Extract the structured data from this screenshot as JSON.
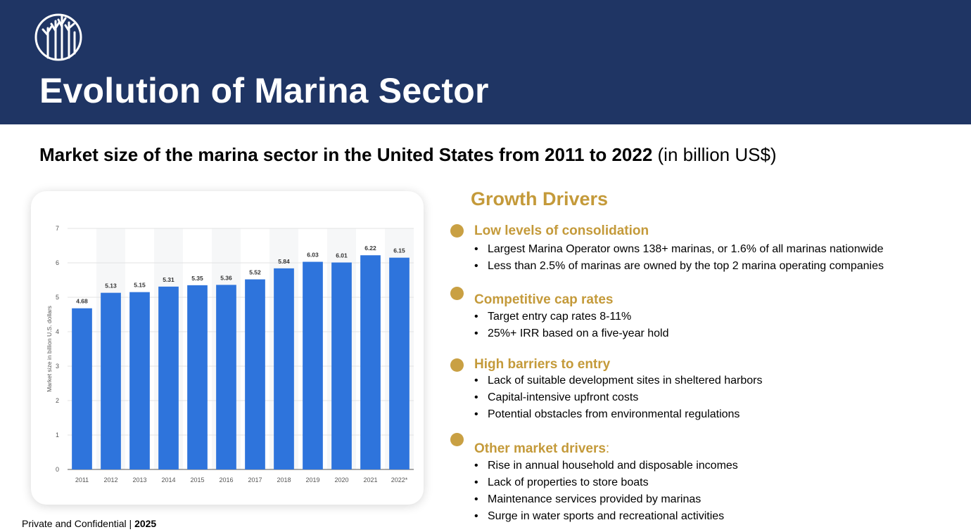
{
  "header": {
    "title": "Evolution of Marina Sector",
    "logo_icon": "tree-circle-logo",
    "background": "#1f3564"
  },
  "subtitle": {
    "bold_text": "Market size of the marina sector in the United States from 2011 to 2022",
    "normal_text": " (in billion US$)"
  },
  "chart_data": {
    "type": "bar",
    "categories": [
      "2011",
      "2012",
      "2013",
      "2014",
      "2015",
      "2016",
      "2017",
      "2018",
      "2019",
      "2020",
      "2021",
      "2022*"
    ],
    "values": [
      4.68,
      5.13,
      5.15,
      5.31,
      5.35,
      5.36,
      5.52,
      5.84,
      6.03,
      6.01,
      6.22,
      6.15
    ],
    "value_labels": [
      "4.68",
      "5.13",
      "5.15",
      "5.31",
      "5.35",
      "5.36",
      "5.52",
      "5.84",
      "6.03",
      "6.01",
      "6.22",
      "6.15"
    ],
    "ylabel": "Market size in billion U.S. dollars",
    "xlabel": "",
    "ylim": [
      0,
      7
    ],
    "yticks": [
      0,
      1,
      2,
      3,
      4,
      5,
      6,
      7
    ],
    "grid": true,
    "bar_color": "#2e74dc"
  },
  "growth_drivers": {
    "heading": "Growth Drivers",
    "accent": "#c49a3a",
    "sections": [
      {
        "title": "Low levels of consolidation",
        "suffix": "",
        "items": [
          "Largest Marina Operator owns 138+ marinas, or 1.6% of all marinas nationwide",
          "Less than 2.5% of marinas are owned by the top 2 marina operating companies"
        ]
      },
      {
        "title": "Competitive cap rates",
        "suffix": "",
        "items": [
          "Target entry cap rates 8-11%",
          "25%+ IRR based on a five-year hold"
        ]
      },
      {
        "title": "High barriers to entry",
        "suffix": "",
        "items": [
          "Lack of suitable development sites in sheltered harbors",
          "Capital-intensive upfront costs",
          "Potential obstacles from environmental regulations"
        ]
      },
      {
        "title": "Other market drivers",
        "suffix": ":",
        "items": [
          "Rise in annual household and disposable incomes",
          "Lack of properties to store boats",
          "Maintenance services provided by marinas",
          "Surge in water sports and recreational activities"
        ]
      }
    ]
  },
  "footer": {
    "text": "Private and Confidential | ",
    "year": "2025"
  }
}
